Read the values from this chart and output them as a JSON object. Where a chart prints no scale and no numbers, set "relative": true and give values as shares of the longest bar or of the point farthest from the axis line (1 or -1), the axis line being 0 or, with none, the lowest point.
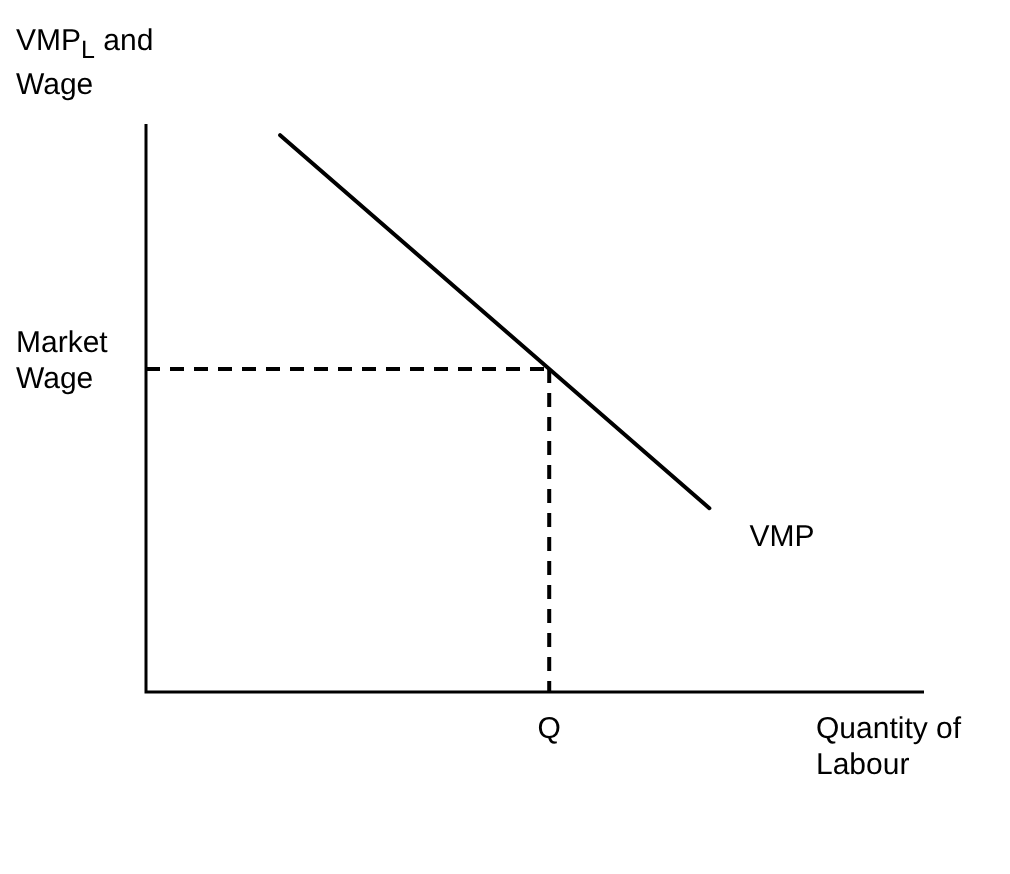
{
  "chart_data": {
    "type": "line",
    "relative": true,
    "ylabel": "VMP$_{L}$ and Wage",
    "xlabel": "Quantity of Labour",
    "categories": [
      null,
      null,
      null,
      null,
      null,
      null,
      null,
      null,
      null,
      null,
      null,
      null,
      null,
      null,
      null,
      null,
      null,
      null,
      null,
      null,
      null,
      null,
      null,
      null,
      null,
      null,
      null,
      null,
      null,
      null
    ],
    "series": [
      {
        "name": "VMP",
        "color": "#000000",
        "values": [
          null,
          null,
          null,
          null,
          null,
          1,
          null,
          null,
          null,
          null,
          null,
          null,
          null,
          null,
          null,
          null,
          null,
          null,
          null,
          null,
          null,
          0.33,
          null,
          null,
          null,
          null,
          null,
          null,
          null,
          null
        ]
      }
    ],
    "ref_lines": [
      {
        "axis": "y",
        "value": 0.58,
        "label": "Market Wage",
        "line_style": "dashed",
        "color": "#000000"
      }
    ],
    "annotations": [
      "Q"
    ],
    "legend": false,
    "marker": "none",
    "grid": false
  }
}
